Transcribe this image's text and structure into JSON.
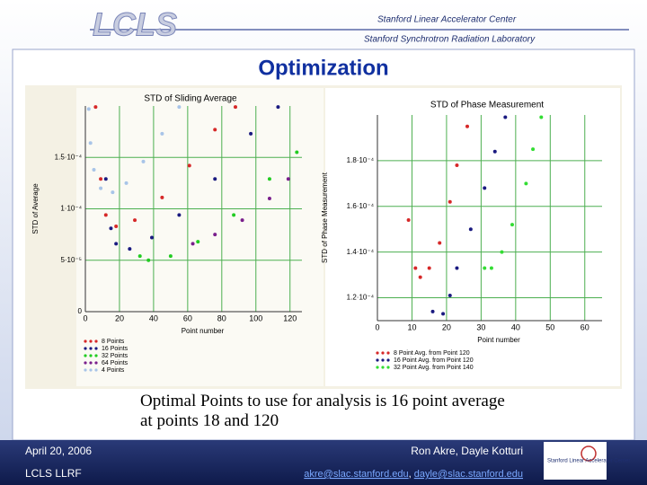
{
  "header": {
    "logo": "LCLS",
    "org1": "Stanford Linear Accelerator Center",
    "org2": "Stanford Synchrotron Radiation Laboratory"
  },
  "title": "Optimization",
  "chart_data": [
    {
      "type": "scatter",
      "title": "STD of Sliding Average",
      "ylabel": "STD of Average",
      "xlabel": "Point number",
      "xlim": [
        0,
        127
      ],
      "xticks": [
        0,
        20,
        40,
        60,
        80,
        100,
        120
      ],
      "ylim": [
        0,
        0.0002
      ],
      "yticks": [
        0,
        {
          "value": 5e-05,
          "label": "5·10⁻⁵"
        },
        {
          "value": 0.0001,
          "label": "1·10⁻⁴"
        },
        {
          "value": 0.00015,
          "label": "1.5·10⁻⁴"
        }
      ],
      "grid": true,
      "series": [
        {
          "name": "8 Points",
          "color": "#d62828",
          "x": [
            6,
            9,
            12,
            18,
            29,
            45,
            61,
            76,
            88
          ],
          "values": [
            0.000199,
            0.000129,
            9.4e-05,
            8.3e-05,
            8.9e-05,
            0.000111,
            0.000142,
            0.000177,
            0.000199
          ]
        },
        {
          "name": "16 Points",
          "color": "#1a1a80",
          "x": [
            12,
            15,
            18,
            26,
            39,
            55,
            76,
            97,
            113
          ],
          "values": [
            0.000129,
            8.1e-05,
            6.6e-05,
            6.1e-05,
            7.2e-05,
            9.4e-05,
            0.000129,
            0.000173,
            0.000199
          ]
        },
        {
          "name": "32 Points",
          "color": "#22cc22",
          "x": [
            32,
            37,
            50,
            66,
            87,
            108,
            124
          ],
          "values": [
            5.4e-05,
            5e-05,
            5.4e-05,
            6.8e-05,
            9.4e-05,
            0.000129,
            0.000155
          ]
        },
        {
          "name": "64 Points",
          "color": "#7a1f8c",
          "x": [
            63,
            76,
            92,
            108,
            119
          ],
          "values": [
            6.6e-05,
            7.5e-05,
            8.9e-05,
            0.00011,
            0.000129
          ]
        },
        {
          "name": "4 Points",
          "color": "#a8c4e8",
          "x": [
            2,
            3,
            5,
            9,
            16,
            24,
            34,
            45,
            55
          ],
          "values": [
            0.000197,
            0.000164,
            0.000138,
            0.00012,
            0.000116,
            0.000125,
            0.000146,
            0.000173,
            0.000199
          ]
        }
      ]
    },
    {
      "type": "scatter",
      "title": "STD of Phase Measurement",
      "ylabel": "STD of Phase Measurement",
      "xlabel": "Point number",
      "xlim": [
        0,
        65
      ],
      "xticks": [
        0,
        10,
        20,
        30,
        40,
        50,
        60
      ],
      "ylim": [
        0.00011,
        0.0002
      ],
      "yticks": [
        {
          "value": 0.00012,
          "label": "1.2·10⁻⁴"
        },
        {
          "value": 0.00014,
          "label": "1.4·10⁻⁴"
        },
        {
          "value": 0.00016,
          "label": "1.6·10⁻⁴"
        },
        {
          "value": 0.00018,
          "label": "1.8·10⁻⁴"
        }
      ],
      "grid": true,
      "series": [
        {
          "name": "8 Point Avg. from Point 120",
          "color": "#d62828",
          "x": [
            9,
            11,
            12.4,
            15,
            18,
            21,
            23,
            26
          ],
          "values": [
            0.000154,
            0.000133,
            0.000129,
            0.000133,
            0.000144,
            0.000162,
            0.000178,
            0.000195
          ]
        },
        {
          "name": "16 Point Avg. from Point 120",
          "color": "#1a1a80",
          "x": [
            16,
            19,
            21,
            23,
            27,
            31,
            34,
            37
          ],
          "values": [
            0.000114,
            0.000113,
            0.000121,
            0.000133,
            0.00015,
            0.000168,
            0.000184,
            0.000199
          ]
        },
        {
          "name": "32 Point Avg. from Point 140",
          "color": "#33dd33",
          "x": [
            31,
            33,
            36,
            39,
            43,
            45,
            47.4
          ],
          "values": [
            0.000133,
            0.000133,
            0.00014,
            0.000152,
            0.00017,
            0.000185,
            0.000199
          ]
        }
      ]
    }
  ],
  "body": "Optimal Points to use for analysis is 16 point average at points 18 and 120",
  "footer": {
    "date": "April 20, 2006",
    "project": "LCLS LLRF",
    "authors": "Ron Akre, Dayle Kotturi",
    "email1": "akre@slac.stanford.edu",
    "sep": ",",
    "email2": "dayle@slac.stanford.edu",
    "logo": "Stanford Linear Accelerator Center"
  }
}
